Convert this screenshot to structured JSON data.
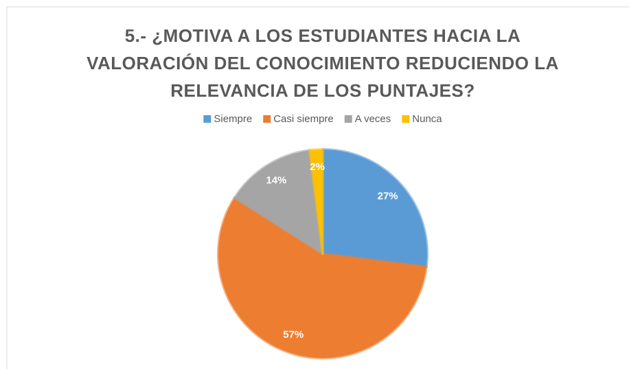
{
  "chart_data": {
    "type": "pie",
    "title": "5.- ¿MOTIVA A LOS ESTUDIANTES HACIA LA VALORACIÓN DEL CONOCIMIENTO REDUCIENDO LA RELEVANCIA DE LOS PUNTAJES?",
    "categories": [
      "Siempre",
      "Casi siempre",
      "A veces",
      "Nunca"
    ],
    "values": [
      27,
      57,
      14,
      2
    ],
    "value_labels": [
      "27%",
      "57%",
      "14%",
      "2%"
    ],
    "colors": [
      "#5b9bd5",
      "#ed7d31",
      "#a5a5a5",
      "#ffc000"
    ],
    "legend": "top"
  }
}
